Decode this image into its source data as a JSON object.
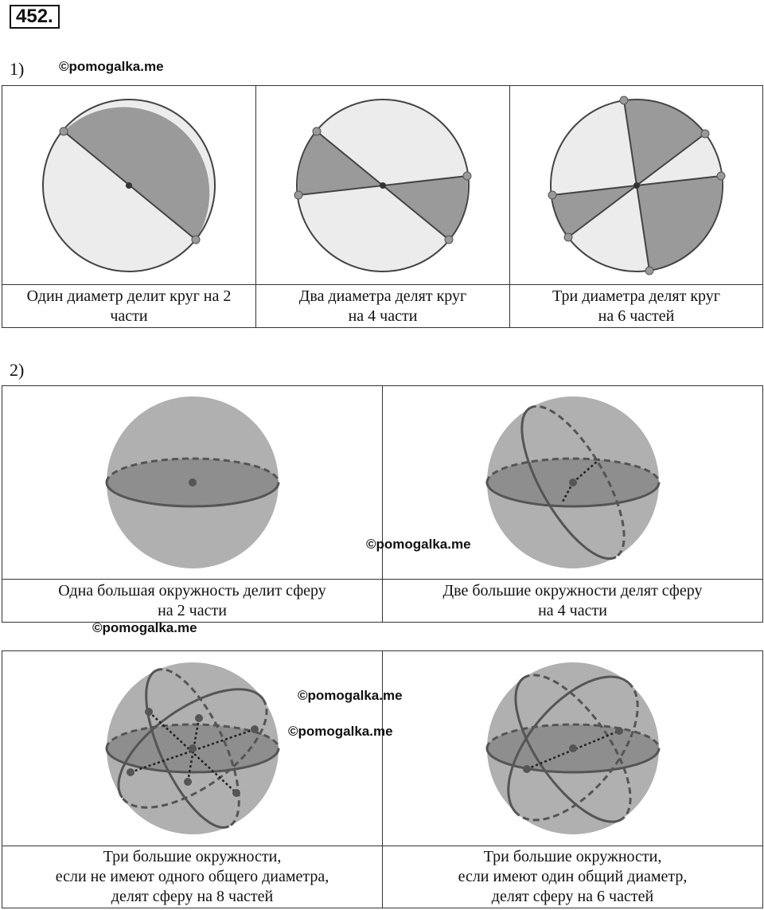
{
  "problem_number": "452.",
  "part1_label": "1)",
  "part2_label": "2)",
  "watermarks": [
    "©pomogalka.me",
    "©pomogalka.me",
    "©pomogalka.me",
    "©pomogalka.me",
    "©pomogalka.me"
  ],
  "circles": [
    {
      "caption_lines": [
        "Один диаметр делит круг на 2",
        "части"
      ]
    },
    {
      "caption_lines": [
        "Два диаметра делят круг",
        "на 4 части"
      ]
    },
    {
      "caption_lines": [
        "Три диаметра делят круг",
        "на 6 частей"
      ]
    }
  ],
  "spheres_row1": [
    {
      "caption_lines": [
        "Одна большая окружность делит сферу",
        "на 2 части"
      ]
    },
    {
      "caption_lines": [
        "Две большие окружности делят сферу",
        "на 4 части"
      ]
    }
  ],
  "spheres_row2": [
    {
      "caption_lines": [
        "Три большие окружности,",
        "если не имеют одного общего диаметра,",
        "делят сферу на 8 частей"
      ]
    },
    {
      "caption_lines": [
        "Три большие окружности,",
        "если имеют один общий диаметр,",
        "делят сферу на 6 частей"
      ]
    }
  ],
  "colors": {
    "dark_sector": "#9a9a9a",
    "light_sector": "#ececec",
    "sphere": "#b0b0b0",
    "equator_fill": "#8e8e8e",
    "line": "#444444"
  }
}
